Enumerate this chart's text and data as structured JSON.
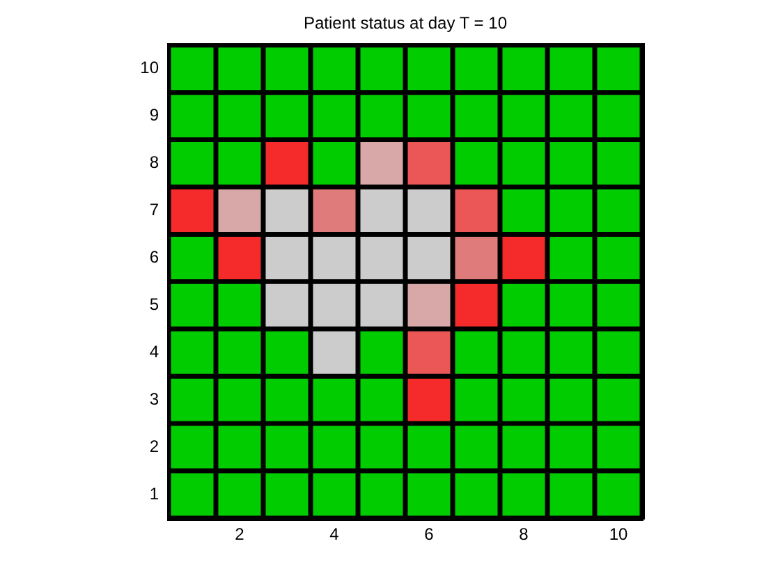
{
  "chart_data": {
    "type": "scatter",
    "title": "Patient status at day T = 10",
    "series": [
      {
        "color": "#00cc00",
        "x": [
          1,
          2,
          3,
          4,
          5,
          6,
          7,
          8,
          9,
          10,
          1,
          2,
          3,
          4,
          5,
          6,
          7,
          8,
          9,
          10,
          1,
          2,
          4,
          7,
          8,
          9,
          10,
          8,
          9,
          10,
          1,
          9,
          10,
          1,
          2,
          8,
          9,
          10,
          1,
          2,
          3,
          5,
          7,
          8,
          9,
          10,
          1,
          2,
          3,
          4,
          5,
          7,
          8,
          9,
          10,
          1,
          2,
          3,
          4,
          5,
          6,
          7,
          8,
          9,
          10,
          1,
          2,
          3,
          4,
          5,
          6,
          7,
          8,
          9,
          10
        ],
        "values": [
          10,
          10,
          10,
          10,
          10,
          10,
          10,
          10,
          10,
          10,
          9,
          9,
          9,
          9,
          9,
          9,
          9,
          9,
          9,
          9,
          8,
          8,
          8,
          8,
          8,
          8,
          8,
          7,
          7,
          7,
          6,
          6,
          6,
          5,
          5,
          5,
          5,
          5,
          4,
          4,
          4,
          4,
          4,
          4,
          4,
          4,
          3,
          3,
          3,
          3,
          3,
          3,
          3,
          3,
          3,
          2,
          2,
          2,
          2,
          2,
          2,
          2,
          2,
          2,
          2,
          1,
          1,
          1,
          1,
          1,
          1,
          1,
          1,
          1,
          1
        ]
      },
      {
        "color": "#cccccc",
        "x": [
          3,
          5,
          6,
          3,
          4,
          5,
          6,
          3,
          4,
          5,
          4
        ],
        "values": [
          7,
          7,
          7,
          6,
          6,
          6,
          6,
          5,
          5,
          5,
          4
        ]
      },
      {
        "color": "#f52a2a",
        "x": [
          3,
          1,
          2,
          8,
          7,
          6
        ],
        "values": [
          8,
          7,
          6,
          6,
          5,
          3
        ]
      },
      {
        "color": "#eb5757",
        "x": [
          6,
          7,
          6
        ],
        "values": [
          8,
          7,
          4
        ]
      },
      {
        "color": "#e07b7b",
        "x": [
          4,
          7
        ],
        "values": [
          7,
          6
        ]
      },
      {
        "color": "#d8a8a8",
        "x": [
          5,
          2,
          6
        ],
        "values": [
          8,
          7,
          5
        ]
      }
    ],
    "xlim": [
      0.5,
      10.5
    ],
    "ylim": [
      0.5,
      10.5
    ],
    "xticks": [
      2,
      4,
      6,
      8,
      10
    ],
    "yticks": [
      1,
      2,
      3,
      4,
      5,
      6,
      7,
      8,
      9,
      10
    ],
    "marker": "square"
  }
}
